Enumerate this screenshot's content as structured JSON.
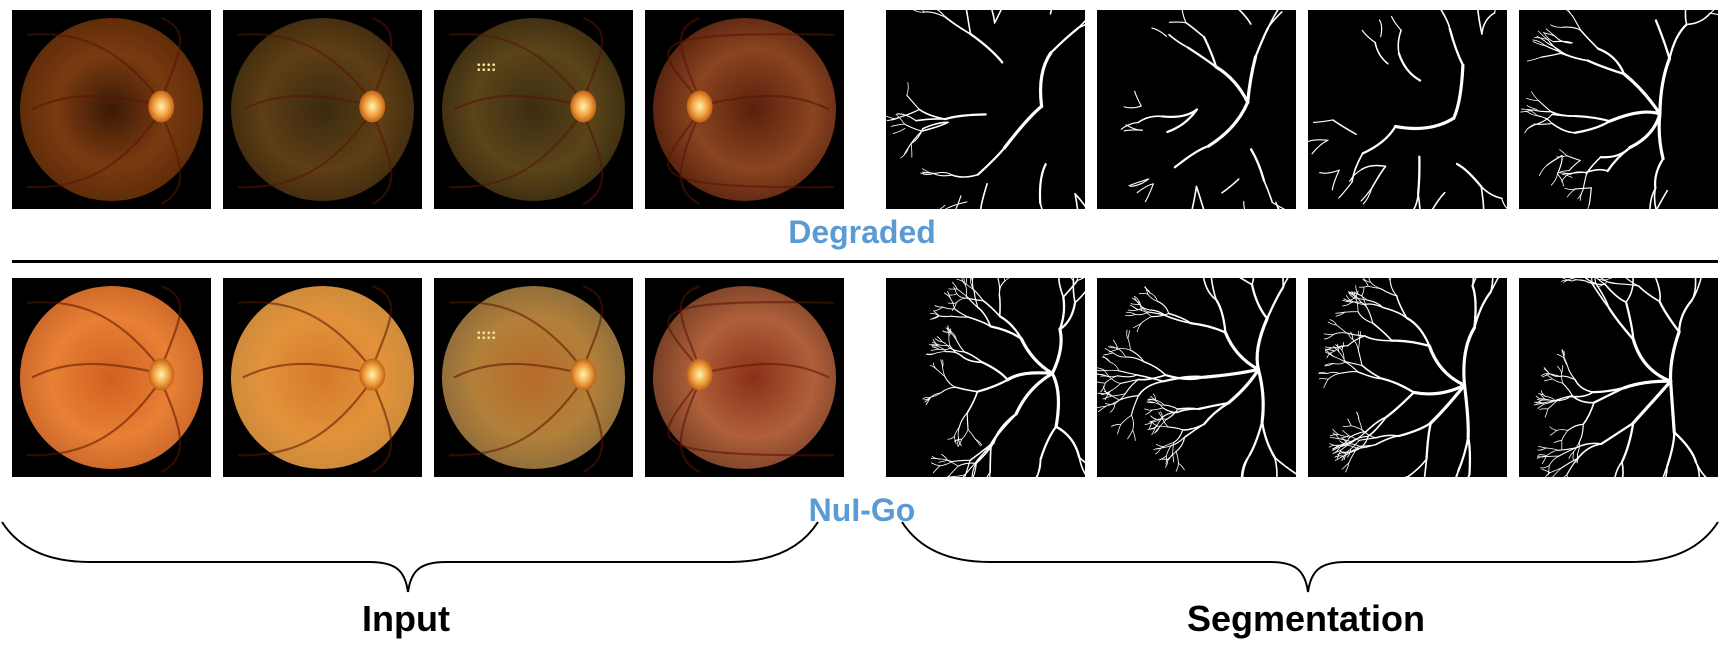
{
  "rows": [
    {
      "label": "Degraded",
      "input_images": [
        {
          "name": "degraded-fundus-1",
          "tone": "dark-brown",
          "disc_side": "right"
        },
        {
          "name": "degraded-fundus-2",
          "tone": "dark-olive",
          "disc_side": "right"
        },
        {
          "name": "degraded-fundus-3",
          "tone": "dark-olive-spotted",
          "disc_side": "right"
        },
        {
          "name": "degraded-fundus-4",
          "tone": "dark-reddish",
          "disc_side": "left"
        }
      ],
      "segmentation_images": [
        {
          "name": "degraded-segmentation-1",
          "density": "medium"
        },
        {
          "name": "degraded-segmentation-2",
          "density": "sparse"
        },
        {
          "name": "degraded-segmentation-3",
          "density": "sparse"
        },
        {
          "name": "degraded-segmentation-4",
          "density": "medium"
        }
      ]
    },
    {
      "label": "NuI-Go",
      "input_images": [
        {
          "name": "nuigo-fundus-1",
          "tone": "bright-orange",
          "disc_side": "right"
        },
        {
          "name": "nuigo-fundus-2",
          "tone": "bright-yellow-orange",
          "disc_side": "right"
        },
        {
          "name": "nuigo-fundus-3",
          "tone": "bright-olive-spotted",
          "disc_side": "right"
        },
        {
          "name": "nuigo-fundus-4",
          "tone": "reddish-brown",
          "disc_side": "left"
        }
      ],
      "segmentation_images": [
        {
          "name": "nuigo-segmentation-1",
          "density": "dense"
        },
        {
          "name": "nuigo-segmentation-2",
          "density": "dense"
        },
        {
          "name": "nuigo-segmentation-3",
          "density": "dense"
        },
        {
          "name": "nuigo-segmentation-4",
          "density": "dense"
        }
      ]
    }
  ],
  "bottom_labels": {
    "input": "Input",
    "segmentation": "Segmentation"
  },
  "colors": {
    "row_label": "#5b9bd5",
    "divider": "#000000",
    "bracket": "#000000"
  }
}
